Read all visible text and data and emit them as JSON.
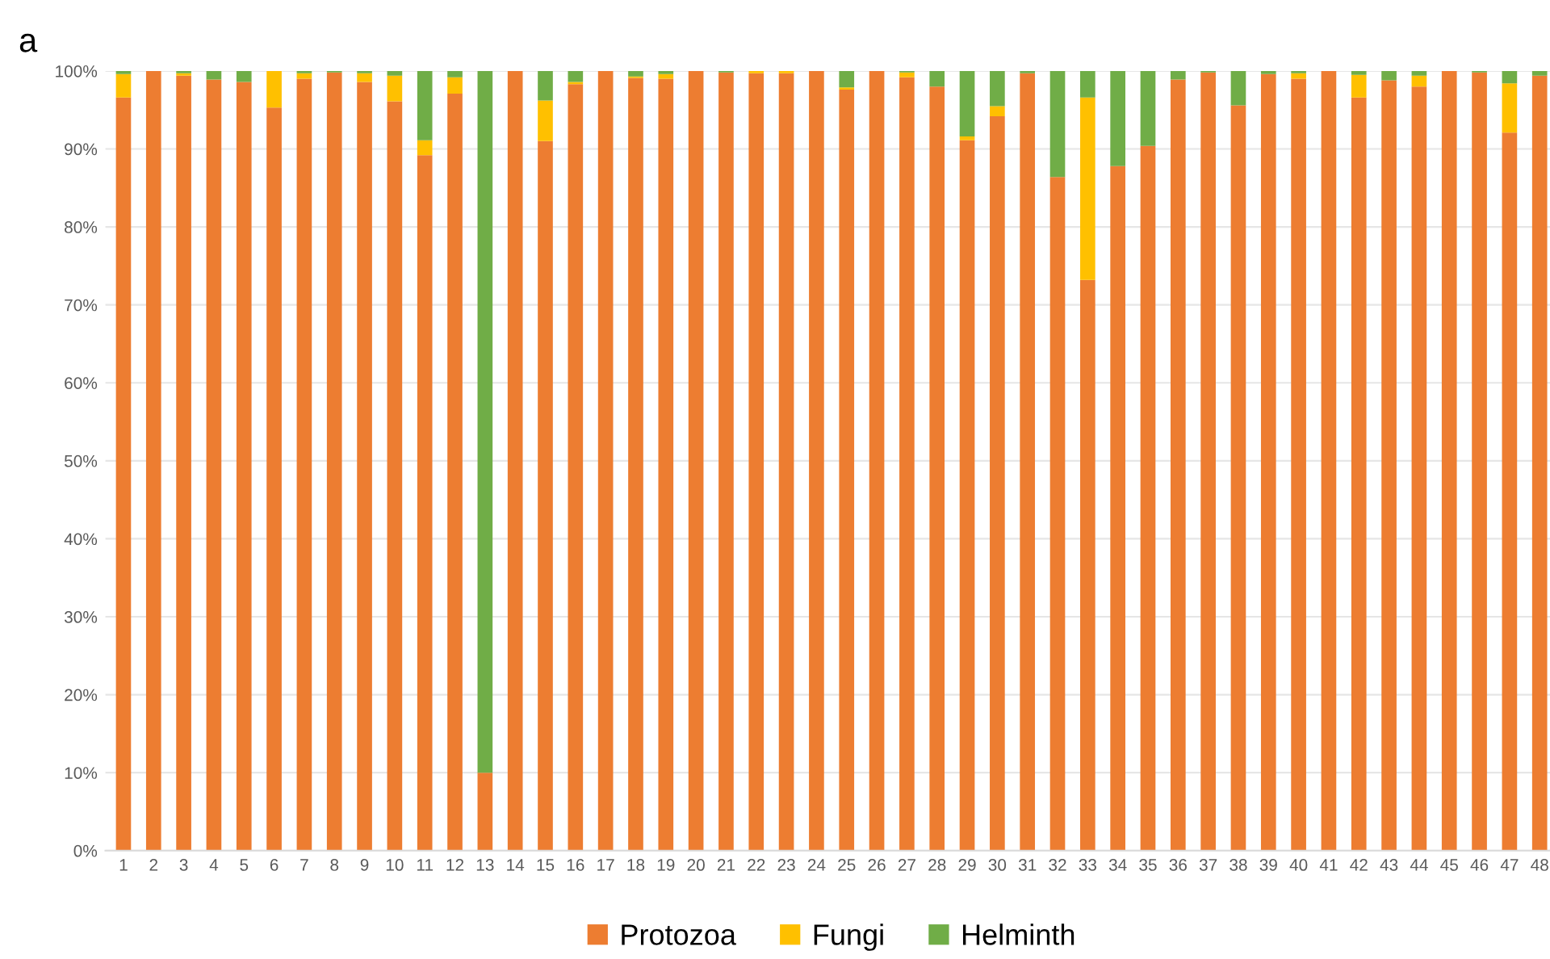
{
  "chart_data": {
    "type": "bar",
    "stacked": true,
    "annotations": [
      "a"
    ],
    "categories": [
      "1",
      "2",
      "3",
      "4",
      "5",
      "6",
      "7",
      "8",
      "9",
      "10",
      "11",
      "12",
      "13",
      "14",
      "15",
      "16",
      "17",
      "18",
      "19",
      "20",
      "21",
      "22",
      "23",
      "24",
      "25",
      "26",
      "27",
      "28",
      "29",
      "30",
      "31",
      "32",
      "33",
      "34",
      "35",
      "36",
      "37",
      "38",
      "39",
      "40",
      "41",
      "42",
      "43",
      "44",
      "45",
      "46",
      "47",
      "48"
    ],
    "series": [
      {
        "name": "Protozoa",
        "color": "#ed7d31",
        "values": [
          96.6,
          100,
          99.4,
          98.9,
          98.6,
          95.3,
          99.0,
          99.8,
          98.6,
          96.1,
          89.2,
          97.1,
          10,
          100,
          91.0,
          98.3,
          100,
          99.1,
          99.0,
          100,
          99.8,
          99.7,
          99.7,
          100,
          97.6,
          100,
          99.2,
          98.0,
          91.1,
          94.2,
          99.7,
          86.4,
          73.2,
          87.8,
          90.4,
          98.9,
          99.8,
          95.6,
          99.6,
          99.0,
          100,
          96.6,
          98.8,
          98.0,
          100,
          99.8,
          92.1,
          99.4
        ]
      },
      {
        "name": "Fungi",
        "color": "#ffc000",
        "values": [
          3.0,
          0,
          0.3,
          0,
          0,
          4.7,
          0.7,
          0,
          1.1,
          3.3,
          1.9,
          2.1,
          0,
          0,
          5.2,
          0.3,
          0,
          0.2,
          0.6,
          0,
          0,
          0.3,
          0.3,
          0,
          0.3,
          0,
          0.6,
          0,
          0.5,
          1.3,
          0,
          0,
          23.4,
          0,
          0,
          0,
          0,
          0,
          0,
          0.7,
          0,
          2.9,
          0,
          1.4,
          0,
          0,
          6.3,
          0
        ]
      },
      {
        "name": "Helminth",
        "color": "#70ad47",
        "values": [
          0.4,
          0,
          0.3,
          1.1,
          1.4,
          0,
          0.3,
          0.2,
          0.3,
          0.6,
          8.9,
          0.8,
          90,
          0,
          3.8,
          1.4,
          0,
          0.7,
          0.4,
          0,
          0.2,
          0,
          0,
          0,
          2.1,
          0,
          0.2,
          2.0,
          8.4,
          4.5,
          0.3,
          13.6,
          3.4,
          12.2,
          9.6,
          1.1,
          0.2,
          4.4,
          0.4,
          0.3,
          0,
          0.5,
          1.2,
          0.6,
          0,
          0.2,
          1.6,
          0.6
        ]
      }
    ],
    "ylim": [
      0,
      100
    ],
    "yticks": [
      {
        "value": 0,
        "label": "0%"
      },
      {
        "value": 10,
        "label": "10%"
      },
      {
        "value": 20,
        "label": "20%"
      },
      {
        "value": 30,
        "label": "30%"
      },
      {
        "value": 40,
        "label": "40%"
      },
      {
        "value": 50,
        "label": "50%"
      },
      {
        "value": 60,
        "label": "60%"
      },
      {
        "value": 70,
        "label": "70%"
      },
      {
        "value": 80,
        "label": "80%"
      },
      {
        "value": 90,
        "label": "90%"
      },
      {
        "value": 100,
        "label": "100%"
      }
    ],
    "grid": "y",
    "legend": "bottom"
  }
}
